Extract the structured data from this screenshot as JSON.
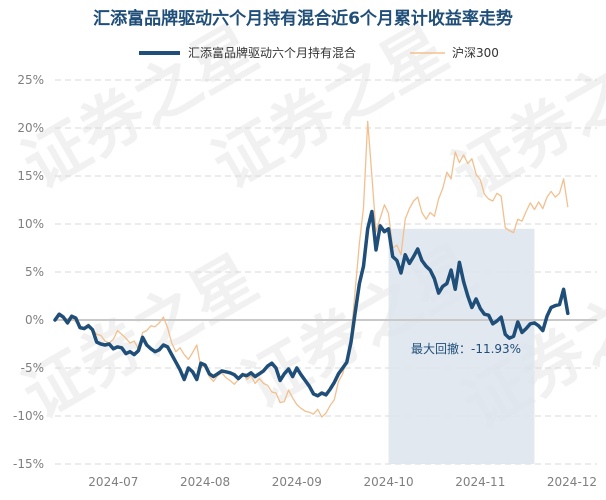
{
  "chart_data": {
    "type": "line",
    "title": "汇添富品牌驱动六个月持有混合近6个月累计收益率走势",
    "watermark": "证券之星",
    "colors": {
      "fund": "#1f4e79",
      "index": "#f2c08f",
      "drawdown_fill": "#dde4ec",
      "zero_line": "#c9c9c9",
      "grid": "#d9d9d9",
      "title": "#1f4e79"
    },
    "yaxis": {
      "min": -15,
      "max": 25,
      "step": 5,
      "tick_labels": [
        "25%",
        "20%",
        "15%",
        "10%",
        "5%",
        "0%",
        "-5%",
        "-10%",
        "-15%"
      ]
    },
    "xaxis": {
      "min": 0,
      "max": 130,
      "ticks": [
        {
          "x": 14,
          "label": "2024-07"
        },
        {
          "x": 36,
          "label": "2024-08"
        },
        {
          "x": 58,
          "label": "2024-09"
        },
        {
          "x": 80,
          "label": "2024-10"
        },
        {
          "x": 102,
          "label": "2024-11"
        },
        {
          "x": 124,
          "label": "2024-12"
        }
      ]
    },
    "max_drawdown": {
      "label": "最大回撤：-11.93%",
      "from_x": 80,
      "to_x": 115,
      "value": -11.93
    },
    "series": [
      {
        "name": "汇添富品牌驱动六个月持有混合",
        "role": "fund",
        "points": [
          [
            0,
            0
          ],
          [
            1,
            0.6
          ],
          [
            2,
            0.3
          ],
          [
            3,
            -0.3
          ],
          [
            4,
            0.4
          ],
          [
            5,
            0.2
          ],
          [
            6,
            -0.8
          ],
          [
            7,
            -0.9
          ],
          [
            8,
            -0.6
          ],
          [
            9,
            -1.0
          ],
          [
            10,
            -2.3
          ],
          [
            11,
            -2.5
          ],
          [
            12,
            -2.6
          ],
          [
            13,
            -2.5
          ],
          [
            14,
            -3.0
          ],
          [
            15,
            -2.8
          ],
          [
            16,
            -2.9
          ],
          [
            17,
            -3.5
          ],
          [
            18,
            -3.3
          ],
          [
            19,
            -3.6
          ],
          [
            20,
            -3.2
          ],
          [
            21,
            -1.8
          ],
          [
            22,
            -2.6
          ],
          [
            23,
            -3.0
          ],
          [
            24,
            -3.3
          ],
          [
            25,
            -3.1
          ],
          [
            26,
            -2.6
          ],
          [
            27,
            -2.8
          ],
          [
            28,
            -3.6
          ],
          [
            29,
            -4.4
          ],
          [
            30,
            -5.2
          ],
          [
            31,
            -6.2
          ],
          [
            32,
            -5.0
          ],
          [
            33,
            -5.4
          ],
          [
            34,
            -6.2
          ],
          [
            35,
            -4.5
          ],
          [
            36,
            -4.7
          ],
          [
            37,
            -5.6
          ],
          [
            38,
            -5.9
          ],
          [
            39,
            -5.6
          ],
          [
            40,
            -5.3
          ],
          [
            41,
            -5.4
          ],
          [
            42,
            -5.5
          ],
          [
            43,
            -5.7
          ],
          [
            44,
            -6.1
          ],
          [
            45,
            -5.7
          ],
          [
            46,
            -5.8
          ],
          [
            47,
            -5.5
          ],
          [
            48,
            -5.9
          ],
          [
            49,
            -5.6
          ],
          [
            50,
            -5.3
          ],
          [
            51,
            -4.8
          ],
          [
            52,
            -4.5
          ],
          [
            53,
            -5.0
          ],
          [
            54,
            -6.3
          ],
          [
            55,
            -5.6
          ],
          [
            56,
            -5.1
          ],
          [
            57,
            -5.9
          ],
          [
            58,
            -5.0
          ],
          [
            59,
            -5.7
          ],
          [
            60,
            -6.3
          ],
          [
            61,
            -6.9
          ],
          [
            62,
            -7.7
          ],
          [
            63,
            -7.9
          ],
          [
            64,
            -7.6
          ],
          [
            65,
            -7.8
          ],
          [
            66,
            -7.2
          ],
          [
            67,
            -6.5
          ],
          [
            68,
            -5.6
          ],
          [
            69,
            -5.0
          ],
          [
            70,
            -4.4
          ],
          [
            71,
            -2.3
          ],
          [
            72,
            0.8
          ],
          [
            73,
            3.8
          ],
          [
            74,
            5.6
          ],
          [
            75,
            9.5
          ],
          [
            76,
            11.3
          ],
          [
            77,
            7.3
          ],
          [
            78,
            9.8
          ],
          [
            79,
            9.2
          ],
          [
            80,
            9.5
          ],
          [
            81,
            6.6
          ],
          [
            82,
            6.2
          ],
          [
            83,
            4.9
          ],
          [
            84,
            6.8
          ],
          [
            85,
            5.9
          ],
          [
            86,
            6.6
          ],
          [
            87,
            7.4
          ],
          [
            88,
            6.2
          ],
          [
            89,
            5.6
          ],
          [
            90,
            5.2
          ],
          [
            91,
            4.3
          ],
          [
            92,
            2.8
          ],
          [
            93,
            3.5
          ],
          [
            94,
            3.8
          ],
          [
            95,
            5.2
          ],
          [
            96,
            3.2
          ],
          [
            97,
            6.0
          ],
          [
            98,
            4.0
          ],
          [
            99,
            2.5
          ],
          [
            100,
            1.3
          ],
          [
            101,
            2.2
          ],
          [
            102,
            1.2
          ],
          [
            103,
            0.6
          ],
          [
            104,
            0.5
          ],
          [
            105,
            -0.4
          ],
          [
            106,
            -0.1
          ],
          [
            107,
            0.3
          ],
          [
            108,
            -1.5
          ],
          [
            109,
            -1.9
          ],
          [
            110,
            -1.7
          ],
          [
            111,
            -0.2
          ],
          [
            112,
            -1.3
          ],
          [
            113,
            -0.9
          ],
          [
            114,
            -0.4
          ],
          [
            115,
            -0.3
          ],
          [
            116,
            -0.6
          ],
          [
            117,
            -1.1
          ],
          [
            118,
            0.4
          ],
          [
            119,
            1.3
          ],
          [
            120,
            1.5
          ],
          [
            121,
            1.6
          ],
          [
            122,
            3.2
          ],
          [
            123,
            0.7
          ]
        ]
      },
      {
        "name": "沪深300",
        "role": "index",
        "points": [
          [
            0,
            0
          ],
          [
            1,
            0.4
          ],
          [
            2,
            0.2
          ],
          [
            3,
            0.1
          ],
          [
            4,
            0.3
          ],
          [
            5,
            -0.2
          ],
          [
            6,
            -0.6
          ],
          [
            7,
            -0.8
          ],
          [
            8,
            -0.4
          ],
          [
            9,
            -0.9
          ],
          [
            10,
            -1.5
          ],
          [
            11,
            -1.6
          ],
          [
            12,
            -2.2
          ],
          [
            13,
            -2.4
          ],
          [
            14,
            -2.0
          ],
          [
            15,
            -1.1
          ],
          [
            16,
            -1.5
          ],
          [
            17,
            -1.9
          ],
          [
            18,
            -2.4
          ],
          [
            19,
            -2.2
          ],
          [
            20,
            -3.0
          ],
          [
            21,
            -1.3
          ],
          [
            22,
            -1.1
          ],
          [
            23,
            -0.6
          ],
          [
            24,
            -0.7
          ],
          [
            25,
            -0.3
          ],
          [
            26,
            0.3
          ],
          [
            27,
            -0.8
          ],
          [
            28,
            -2.4
          ],
          [
            29,
            -3.3
          ],
          [
            30,
            -2.9
          ],
          [
            31,
            -3.6
          ],
          [
            32,
            -4.1
          ],
          [
            33,
            -3.4
          ],
          [
            34,
            -2.6
          ],
          [
            35,
            -5.0
          ],
          [
            36,
            -4.7
          ],
          [
            37,
            -5.9
          ],
          [
            38,
            -6.4
          ],
          [
            39,
            -5.8
          ],
          [
            40,
            -5.5
          ],
          [
            41,
            -6.0
          ],
          [
            42,
            -6.3
          ],
          [
            43,
            -6.7
          ],
          [
            44,
            -6.2
          ],
          [
            45,
            -5.5
          ],
          [
            46,
            -6.2
          ],
          [
            47,
            -5.8
          ],
          [
            48,
            -6.6
          ],
          [
            49,
            -6.1
          ],
          [
            50,
            -6.6
          ],
          [
            51,
            -6.8
          ],
          [
            52,
            -7.5
          ],
          [
            53,
            -7.6
          ],
          [
            54,
            -8.6
          ],
          [
            55,
            -8.5
          ],
          [
            56,
            -7.3
          ],
          [
            57,
            -8.1
          ],
          [
            58,
            -8.8
          ],
          [
            59,
            -9.2
          ],
          [
            60,
            -9.5
          ],
          [
            61,
            -9.6
          ],
          [
            62,
            -9.8
          ],
          [
            63,
            -9.3
          ],
          [
            64,
            -10.1
          ],
          [
            65,
            -9.7
          ],
          [
            66,
            -8.9
          ],
          [
            67,
            -8.3
          ],
          [
            68,
            -6.4
          ],
          [
            69,
            -5.6
          ],
          [
            70,
            -4.1
          ],
          [
            71,
            -1.8
          ],
          [
            72,
            3.1
          ],
          [
            73,
            8.0
          ],
          [
            74,
            11.7
          ],
          [
            75,
            20.7
          ],
          [
            76,
            15.0
          ],
          [
            77,
            9.2
          ],
          [
            78,
            10.6
          ],
          [
            79,
            12.0
          ],
          [
            80,
            11.1
          ],
          [
            81,
            7.5
          ],
          [
            82,
            7.8
          ],
          [
            83,
            6.8
          ],
          [
            84,
            10.5
          ],
          [
            85,
            11.6
          ],
          [
            86,
            12.4
          ],
          [
            87,
            12.8
          ],
          [
            88,
            11.2
          ],
          [
            89,
            10.5
          ],
          [
            90,
            11.2
          ],
          [
            91,
            10.8
          ],
          [
            92,
            12.6
          ],
          [
            93,
            13.7
          ],
          [
            94,
            15.4
          ],
          [
            95,
            14.7
          ],
          [
            96,
            17.5
          ],
          [
            97,
            16.4
          ],
          [
            98,
            17.2
          ],
          [
            99,
            16.3
          ],
          [
            100,
            16.8
          ],
          [
            101,
            15.2
          ],
          [
            102,
            14.6
          ],
          [
            103,
            13.1
          ],
          [
            104,
            12.6
          ],
          [
            105,
            12.4
          ],
          [
            106,
            13.2
          ],
          [
            107,
            12.9
          ],
          [
            108,
            9.6
          ],
          [
            109,
            9.3
          ],
          [
            110,
            9.1
          ],
          [
            111,
            10.5
          ],
          [
            112,
            10.3
          ],
          [
            113,
            11.3
          ],
          [
            114,
            12.2
          ],
          [
            115,
            11.5
          ],
          [
            116,
            12.3
          ],
          [
            117,
            11.6
          ],
          [
            118,
            12.8
          ],
          [
            119,
            13.4
          ],
          [
            120,
            12.8
          ],
          [
            121,
            13.2
          ],
          [
            122,
            14.7
          ],
          [
            123,
            11.8
          ]
        ]
      }
    ]
  }
}
